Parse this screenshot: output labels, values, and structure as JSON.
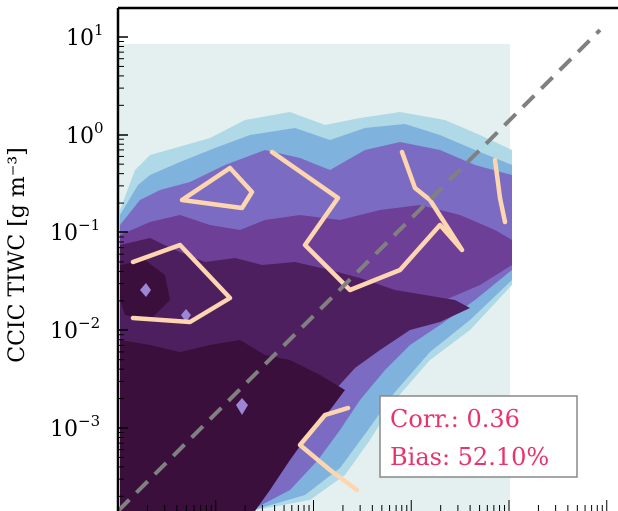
{
  "chart_data": {
    "type": "contour",
    "ylabel": "CCIC TIWC [g m⁻³]",
    "yscale": "log",
    "xscale": "log",
    "ylim": [
      0.00015,
      15
    ],
    "xlim": [
      0.00015,
      15
    ],
    "y_ticks": [
      {
        "value": 10,
        "base": "10",
        "exp": "1"
      },
      {
        "value": 1,
        "base": "10",
        "exp": "0"
      },
      {
        "value": 0.1,
        "base": "10",
        "exp": "−1"
      },
      {
        "value": 0.01,
        "base": "10",
        "exp": "−2"
      },
      {
        "value": 0.001,
        "base": "10",
        "exp": "−3"
      }
    ],
    "reference_line": {
      "style": "dashed",
      "color": "#808080",
      "description": "1:1"
    },
    "stats": {
      "corr_label": "Corr.: 0.36",
      "bias_label": "Bias: 52.10%",
      "text_color": "#e8336b"
    },
    "colors": {
      "background_region": "#e3f0ef",
      "levels": [
        "#a9d6e5",
        "#7fb2dc",
        "#7b6bc2",
        "#6d3f96",
        "#4e1f5e",
        "#3b0f3c"
      ],
      "line": "#fdd6b0"
    }
  }
}
